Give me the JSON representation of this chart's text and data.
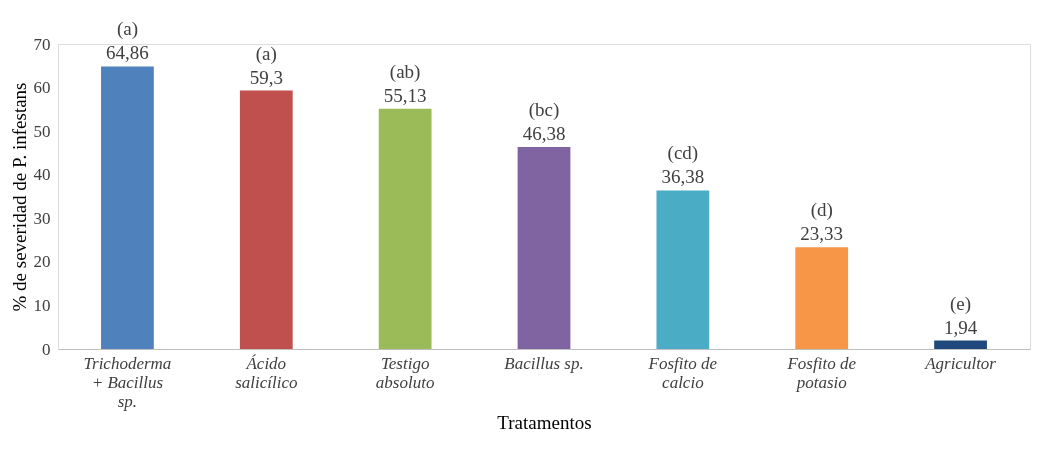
{
  "chart_data": {
    "type": "bar",
    "xlabel": "Tratamentos",
    "ylabel": "% de severidad de P. infestans",
    "categories": [
      "Trichoderma + Bacillus sp.",
      "Ácido salicílico",
      "Testigo absoluto",
      "Bacillus sp.",
      "Fosfito de calcio",
      "Fosfito de potasio",
      "Agricultor"
    ],
    "values": [
      64.86,
      59.3,
      55.13,
      46.38,
      36.38,
      23.33,
      1.94
    ],
    "colors": [
      "#4f81bd",
      "#c0504d",
      "#9bbb59",
      "#8064a2",
      "#4bacc6",
      "#f79646",
      "#1f497d"
    ],
    "value_labels": [
      "64,86",
      "59,3",
      "55,13",
      "46,38",
      "36,38",
      "23,33",
      "1,94"
    ],
    "annotations": [
      {
        "text": "(a)",
        "x": "Trichoderma + Bacillus sp.",
        "y": 64.86
      },
      {
        "text": "(a)",
        "x": "Ácido salicílico",
        "y": 59.3
      },
      {
        "text": "(ab)",
        "x": "Testigo absoluto",
        "y": 55.13
      },
      {
        "text": "(bc)",
        "x": "Bacillus sp.",
        "y": 46.38
      },
      {
        "text": "(cd)",
        "x": "Fosfito de calcio",
        "y": 36.38
      },
      {
        "text": "(d)",
        "x": "Fosfito de potasio",
        "y": 23.33
      },
      {
        "text": "(e)",
        "x": "Agricultor",
        "y": 1.94
      }
    ],
    "ylim": [
      0,
      70
    ],
    "yticks": [
      0,
      10,
      20,
      30,
      40,
      50,
      60,
      70
    ],
    "grid": false
  }
}
